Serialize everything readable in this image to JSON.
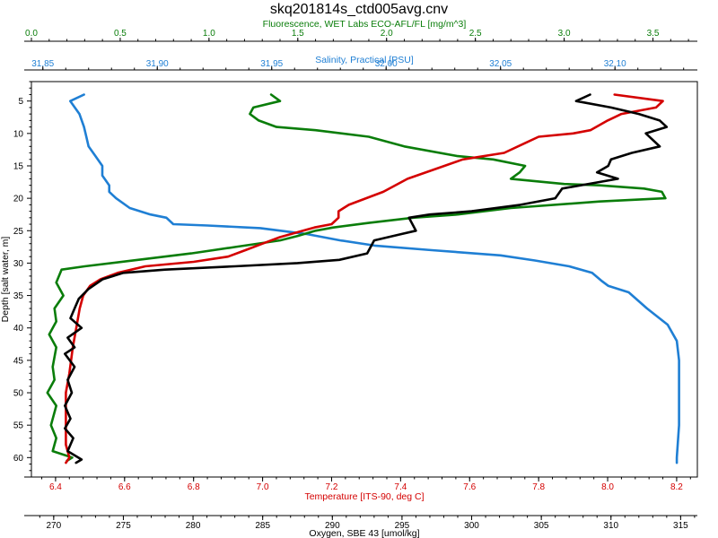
{
  "chart_data": {
    "type": "line",
    "title": "skq201814s_ctd005avg.cnv",
    "y_axis": {
      "label": "Depth [salt water, m]",
      "range": [
        2,
        63
      ],
      "inverted": true,
      "ticks": [
        5,
        10,
        15,
        20,
        25,
        30,
        35,
        40,
        45,
        50,
        55,
        60
      ],
      "tick_labels": [
        "5",
        "10",
        "15",
        "20",
        "25",
        "30",
        "35",
        "40",
        "45",
        "50",
        "55",
        "60"
      ],
      "color": "#000000"
    },
    "x_axes": [
      {
        "id": "fluorescence",
        "label": "Fluorescence, WET Labs ECO-AFL/FL [mg/m^3]",
        "position": "top",
        "color": "#0a7d0a",
        "range": [
          0.0,
          3.75
        ],
        "ticks": [
          0.0,
          0.5,
          1.0,
          1.5,
          2.0,
          2.5,
          3.0,
          3.5
        ],
        "tick_labels": [
          "0.0",
          "0.5",
          "1.0",
          "1.5",
          "2.0",
          "2.5",
          "3.0",
          "3.5"
        ]
      },
      {
        "id": "salinity",
        "label": "Salinity, Practical [PSU]",
        "position": "top",
        "color": "#1f7fd4",
        "range": [
          31.845,
          32.136
        ],
        "ticks": [
          31.85,
          31.9,
          31.95,
          32.0,
          32.05,
          32.1
        ],
        "tick_labels": [
          "31.85",
          "31.90",
          "31.95",
          "32.00",
          "32.05",
          "32.10"
        ]
      },
      {
        "id": "temperature",
        "label": "Temperature [ITS-90, deg C]",
        "position": "bottom",
        "color": "#d40000",
        "range": [
          6.33,
          8.26
        ],
        "ticks": [
          6.4,
          6.6,
          6.8,
          7.0,
          7.2,
          7.4,
          7.6,
          7.8,
          8.0,
          8.2
        ],
        "tick_labels": [
          "6.4",
          "6.6",
          "6.8",
          "7.0",
          "7.2",
          "7.4",
          "7.6",
          "7.8",
          "8.0",
          "8.2"
        ]
      },
      {
        "id": "oxygen",
        "label": "Oxygen, SBE 43 [umol/kg]",
        "position": "bottom",
        "color": "#000000",
        "range": [
          268.4,
          316.2
        ],
        "ticks": [
          270,
          275,
          280,
          285,
          290,
          295,
          300,
          305,
          310,
          315
        ],
        "tick_labels": [
          "270",
          "275",
          "280",
          "285",
          "290",
          "295",
          "300",
          "305",
          "310",
          "315"
        ]
      }
    ],
    "series": [
      {
        "axis": "salinity",
        "color": "#1f7fd4",
        "points": [
          [
            31.868,
            4.0
          ],
          [
            31.862,
            5.0
          ],
          [
            31.866,
            7.0
          ],
          [
            31.868,
            9.0
          ],
          [
            31.869,
            10.5
          ],
          [
            31.87,
            12.0
          ],
          [
            31.873,
            13.5
          ],
          [
            31.876,
            15.0
          ],
          [
            31.876,
            16.5
          ],
          [
            31.879,
            18.0
          ],
          [
            31.879,
            19.0
          ],
          [
            31.882,
            20.0
          ],
          [
            31.888,
            21.5
          ],
          [
            31.897,
            22.5
          ],
          [
            31.904,
            23.0
          ],
          [
            31.907,
            24.0
          ],
          [
            31.922,
            24.2
          ],
          [
            31.945,
            24.6
          ],
          [
            31.965,
            25.5
          ],
          [
            31.98,
            26.5
          ],
          [
            31.995,
            27.3
          ],
          [
            32.02,
            28.0
          ],
          [
            32.05,
            28.8
          ],
          [
            32.065,
            29.6
          ],
          [
            32.08,
            30.5
          ],
          [
            32.09,
            31.5
          ],
          [
            32.094,
            32.7
          ],
          [
            32.097,
            33.5
          ],
          [
            32.106,
            34.5
          ],
          [
            32.114,
            37.0
          ],
          [
            32.123,
            39.5
          ],
          [
            32.127,
            42.0
          ],
          [
            32.128,
            45.0
          ],
          [
            32.128,
            50.0
          ],
          [
            32.128,
            55.0
          ],
          [
            32.127,
            60.0
          ],
          [
            32.127,
            60.8
          ]
        ]
      },
      {
        "axis": "fluorescence",
        "color": "#0a7d0a",
        "points": [
          [
            1.35,
            4.0
          ],
          [
            1.4,
            5.0
          ],
          [
            1.25,
            6.0
          ],
          [
            1.23,
            7.0
          ],
          [
            1.28,
            8.0
          ],
          [
            1.38,
            9.0
          ],
          [
            1.6,
            9.5
          ],
          [
            1.9,
            10.5
          ],
          [
            2.1,
            12.0
          ],
          [
            2.4,
            13.5
          ],
          [
            2.6,
            14.0
          ],
          [
            2.78,
            15.0
          ],
          [
            2.75,
            16.0
          ],
          [
            2.7,
            17.0
          ],
          [
            3.0,
            17.8
          ],
          [
            3.2,
            18.0
          ],
          [
            3.45,
            18.5
          ],
          [
            3.55,
            19.0
          ],
          [
            3.57,
            20.0
          ],
          [
            3.2,
            20.5
          ],
          [
            2.7,
            21.5
          ],
          [
            2.4,
            22.5
          ],
          [
            2.15,
            23.0
          ],
          [
            1.9,
            23.8
          ],
          [
            1.7,
            24.5
          ],
          [
            1.6,
            25.0
          ],
          [
            1.5,
            25.8
          ],
          [
            1.4,
            26.5
          ],
          [
            1.15,
            27.5
          ],
          [
            0.9,
            28.5
          ],
          [
            0.6,
            29.5
          ],
          [
            0.3,
            30.5
          ],
          [
            0.17,
            31.0
          ],
          [
            0.14,
            33.0
          ],
          [
            0.18,
            35.0
          ],
          [
            0.13,
            37.0
          ],
          [
            0.14,
            39.0
          ],
          [
            0.1,
            41.0
          ],
          [
            0.14,
            43.0
          ],
          [
            0.12,
            46.0
          ],
          [
            0.13,
            48.0
          ],
          [
            0.09,
            50.0
          ],
          [
            0.14,
            52.0
          ],
          [
            0.11,
            55.0
          ],
          [
            0.14,
            57.0
          ],
          [
            0.12,
            59.0
          ],
          [
            0.23,
            60.0
          ],
          [
            0.2,
            60.5
          ]
        ]
      },
      {
        "axis": "temperature",
        "color": "#d40000",
        "points": [
          [
            8.02,
            4.0
          ],
          [
            8.16,
            5.0
          ],
          [
            8.14,
            6.0
          ],
          [
            8.04,
            7.0
          ],
          [
            8.0,
            8.0
          ],
          [
            7.95,
            9.5
          ],
          [
            7.9,
            10.0
          ],
          [
            7.8,
            10.5
          ],
          [
            7.76,
            11.5
          ],
          [
            7.7,
            13.0
          ],
          [
            7.58,
            14.0
          ],
          [
            7.5,
            15.5
          ],
          [
            7.42,
            17.0
          ],
          [
            7.35,
            19.0
          ],
          [
            7.25,
            21.0
          ],
          [
            7.22,
            22.0
          ],
          [
            7.22,
            23.0
          ],
          [
            7.2,
            24.0
          ],
          [
            7.15,
            24.5
          ],
          [
            7.05,
            26.0
          ],
          [
            7.0,
            27.0
          ],
          [
            6.95,
            28.0
          ],
          [
            6.9,
            29.0
          ],
          [
            6.8,
            29.8
          ],
          [
            6.66,
            30.5
          ],
          [
            6.58,
            31.5
          ],
          [
            6.53,
            32.5
          ],
          [
            6.5,
            33.5
          ],
          [
            6.48,
            35.0
          ],
          [
            6.47,
            37.0
          ],
          [
            6.46,
            40.0
          ],
          [
            6.45,
            43.0
          ],
          [
            6.44,
            47.0
          ],
          [
            6.43,
            50.0
          ],
          [
            6.43,
            55.0
          ],
          [
            6.43,
            58.0
          ],
          [
            6.44,
            60.0
          ],
          [
            6.43,
            60.8
          ]
        ]
      },
      {
        "axis": "oxygen",
        "color": "#000000",
        "points": [
          [
            308.5,
            4.0
          ],
          [
            307.5,
            5.0
          ],
          [
            310.0,
            6.0
          ],
          [
            312.0,
            7.0
          ],
          [
            313.5,
            8.0
          ],
          [
            314.0,
            9.0
          ],
          [
            312.5,
            10.0
          ],
          [
            313.5,
            12.0
          ],
          [
            311.5,
            13.0
          ],
          [
            310.0,
            14.0
          ],
          [
            309.8,
            15.0
          ],
          [
            309.0,
            16.0
          ],
          [
            310.5,
            17.0
          ],
          [
            306.5,
            18.5
          ],
          [
            306.0,
            20.0
          ],
          [
            303.5,
            21.0
          ],
          [
            300.0,
            22.0
          ],
          [
            297.0,
            22.5
          ],
          [
            295.5,
            23.0
          ],
          [
            296.0,
            25.0
          ],
          [
            295.0,
            25.5
          ],
          [
            293.0,
            26.5
          ],
          [
            292.5,
            28.5
          ],
          [
            290.5,
            29.5
          ],
          [
            287.5,
            30.0
          ],
          [
            283.0,
            30.5
          ],
          [
            278.0,
            31.0
          ],
          [
            275.0,
            31.5
          ],
          [
            273.5,
            32.5
          ],
          [
            272.5,
            34.0
          ],
          [
            271.8,
            35.5
          ],
          [
            271.5,
            37.0
          ],
          [
            271.2,
            38.5
          ],
          [
            272.0,
            40.0
          ],
          [
            271.0,
            41.5
          ],
          [
            271.5,
            43.0
          ],
          [
            270.8,
            44.0
          ],
          [
            271.5,
            46.0
          ],
          [
            271.0,
            48.0
          ],
          [
            271.3,
            50.0
          ],
          [
            270.8,
            52.0
          ],
          [
            271.2,
            54.0
          ],
          [
            270.8,
            55.5
          ],
          [
            271.4,
            57.0
          ],
          [
            271.0,
            59.0
          ],
          [
            272.0,
            60.3
          ],
          [
            271.6,
            60.8
          ]
        ]
      }
    ]
  }
}
